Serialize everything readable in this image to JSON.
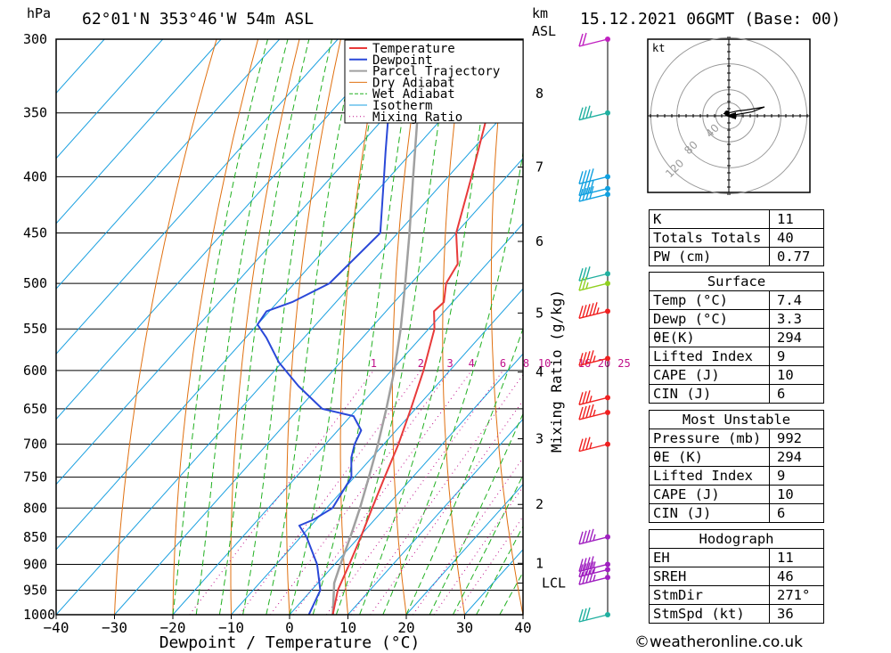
{
  "header": {
    "location": "62°01'N  353°46'W  54m  ASL",
    "datetime": "15.12.2021  06GMT  (Base: 00)",
    "hpa_label": "hPa",
    "km_label": "km",
    "asl_label": "ASL"
  },
  "chart_data": {
    "type": "skew-t",
    "xlabel": "Dewpoint / Temperature (°C)",
    "ylabel_right": "Mixing Ratio (g/kg)",
    "xlim": [
      -40,
      40
    ],
    "ylim_hpa": [
      1000,
      300
    ],
    "x_ticks": [
      -40,
      -30,
      -20,
      -10,
      0,
      10,
      20,
      30,
      40
    ],
    "p_ticks": [
      300,
      350,
      400,
      450,
      500,
      550,
      600,
      650,
      700,
      750,
      800,
      850,
      900,
      950,
      1000
    ],
    "km_ticks": [
      {
        "label": "1",
        "p": 898
      },
      {
        "label": "2",
        "p": 794
      },
      {
        "label": "3",
        "p": 692
      },
      {
        "label": "4",
        "p": 602
      },
      {
        "label": "5",
        "p": 532
      },
      {
        "label": "6",
        "p": 458
      },
      {
        "label": "7",
        "p": 392
      },
      {
        "label": "8",
        "p": 336
      }
    ],
    "lcl": {
      "label": "LCL",
      "p": 936
    },
    "mixing_ratio_labels": [
      "1",
      "2",
      "3",
      "4",
      "6",
      "8",
      "10",
      "16",
      "20",
      "25"
    ],
    "mixing_ratios": [
      1,
      2,
      3,
      4,
      6,
      8,
      10,
      16,
      20,
      25
    ],
    "legend": [
      {
        "name": "Temperature",
        "color": "#e83a3a"
      },
      {
        "name": "Dewpoint",
        "color": "#2a48d8"
      },
      {
        "name": "Parcel Trajectory",
        "color": "#a0a0a0"
      },
      {
        "name": "Dry Adiabat",
        "color": "#e07010"
      },
      {
        "name": "Wet Adiabat",
        "color": "#20b020"
      },
      {
        "name": "Isotherm",
        "color": "#1aa0e0"
      },
      {
        "name": "Mixing Ratio",
        "color": "#c0108a"
      }
    ],
    "temperature": [
      [
        1000,
        7.4
      ],
      [
        950,
        4.5
      ],
      [
        900,
        2.5
      ],
      [
        850,
        0.3
      ],
      [
        800,
        -2.2
      ],
      [
        750,
        -4.8
      ],
      [
        700,
        -7.5
      ],
      [
        650,
        -10.8
      ],
      [
        600,
        -14.5
      ],
      [
        550,
        -19.0
      ],
      [
        530,
        -21.8
      ],
      [
        520,
        -21.5
      ],
      [
        500,
        -24.0
      ],
      [
        480,
        -25.0
      ],
      [
        450,
        -30.0
      ],
      [
        400,
        -36.0
      ],
      [
        350,
        -43.0
      ],
      [
        320,
        -48.0
      ],
      [
        300,
        -50.0
      ]
    ],
    "dewpoint": [
      [
        1000,
        3.3
      ],
      [
        950,
        1.5
      ],
      [
        900,
        -3.0
      ],
      [
        850,
        -9.0
      ],
      [
        830,
        -12.0
      ],
      [
        820,
        -10.5
      ],
      [
        800,
        -9.0
      ],
      [
        750,
        -10.5
      ],
      [
        720,
        -13.5
      ],
      [
        700,
        -15.0
      ],
      [
        680,
        -16.0
      ],
      [
        660,
        -19.5
      ],
      [
        650,
        -26.0
      ],
      [
        620,
        -33.5
      ],
      [
        590,
        -40.5
      ],
      [
        560,
        -46.5
      ],
      [
        545,
        -50.0
      ],
      [
        530,
        -50.5
      ],
      [
        520,
        -47.5
      ],
      [
        500,
        -44.0
      ],
      [
        450,
        -43.0
      ],
      [
        400,
        -51.0
      ],
      [
        380,
        -54.5
      ],
      [
        350,
        -60.0
      ],
      [
        320,
        -64.0
      ],
      [
        300,
        -65.0
      ]
    ],
    "parcel": [
      [
        1000,
        7.4
      ],
      [
        936,
        2.8
      ],
      [
        900,
        1.0
      ],
      [
        850,
        -1.5
      ],
      [
        800,
        -4.3
      ],
      [
        750,
        -7.5
      ],
      [
        700,
        -11.0
      ],
      [
        650,
        -15.0
      ],
      [
        600,
        -19.5
      ],
      [
        550,
        -24.8
      ],
      [
        500,
        -31.0
      ],
      [
        450,
        -38.0
      ],
      [
        400,
        -46.0
      ],
      [
        350,
        -55.0
      ],
      [
        300,
        -65.0
      ]
    ],
    "wind_barbs": [
      {
        "p": 300,
        "dir": 250,
        "spd": 20,
        "color": "#c020c0"
      },
      {
        "p": 350,
        "dir": 250,
        "spd": 35,
        "color": "#20b0a0"
      },
      {
        "p": 400,
        "dir": 255,
        "spd": 40,
        "color": "#10a0e0"
      },
      {
        "p": 410,
        "dir": 255,
        "spd": 40,
        "color": "#10a0e0"
      },
      {
        "p": 415,
        "dir": 255,
        "spd": 40,
        "color": "#10a0e0"
      },
      {
        "p": 490,
        "dir": 260,
        "spd": 30,
        "color": "#20b0a0"
      },
      {
        "p": 500,
        "dir": 260,
        "spd": 25,
        "color": "#90d020"
      },
      {
        "p": 530,
        "dir": 265,
        "spd": 55,
        "color": "#f02020"
      },
      {
        "p": 585,
        "dir": 265,
        "spd": 45,
        "color": "#f02020"
      },
      {
        "p": 635,
        "dir": 268,
        "spd": 35,
        "color": "#f02020"
      },
      {
        "p": 655,
        "dir": 270,
        "spd": 45,
        "color": "#f02020"
      },
      {
        "p": 700,
        "dir": 270,
        "spd": 35,
        "color": "#f02020"
      },
      {
        "p": 850,
        "dir": 272,
        "spd": 45,
        "color": "#a020c0"
      },
      {
        "p": 900,
        "dir": 272,
        "spd": 45,
        "color": "#a020c0"
      },
      {
        "p": 910,
        "dir": 272,
        "spd": 45,
        "color": "#a020c0"
      },
      {
        "p": 925,
        "dir": 272,
        "spd": 45,
        "color": "#a020c0"
      },
      {
        "p": 1000,
        "dir": 270,
        "spd": 30,
        "color": "#20b0a0"
      }
    ],
    "hodograph": {
      "unit_label": "kt",
      "ring_labels": [
        "40",
        "80",
        "120"
      ],
      "points": [
        [
          -6,
          4
        ],
        [
          -4,
          6
        ],
        [
          0,
          6
        ],
        [
          10,
          10
        ],
        [
          20,
          12
        ],
        [
          40,
          18
        ],
        [
          26,
          8
        ],
        [
          0,
          0
        ]
      ]
    }
  },
  "indices": {
    "top": [
      {
        "k": "K",
        "v": "11"
      },
      {
        "k": "Totals Totals",
        "v": "40"
      },
      {
        "k": "PW (cm)",
        "v": "0.77"
      }
    ],
    "surface_title": "Surface",
    "surface": [
      {
        "k": "Temp (°C)",
        "v": "7.4"
      },
      {
        "k": "Dewp (°C)",
        "v": "3.3"
      },
      {
        "k": "θE(K)",
        "v": "294"
      },
      {
        "k": "Lifted Index",
        "v": "9"
      },
      {
        "k": "CAPE (J)",
        "v": "10"
      },
      {
        "k": "CIN (J)",
        "v": "6"
      }
    ],
    "mu_title": "Most Unstable",
    "mu": [
      {
        "k": "Pressure (mb)",
        "v": "992"
      },
      {
        "k": "θE (K)",
        "v": "294"
      },
      {
        "k": "Lifted Index",
        "v": "9"
      },
      {
        "k": "CAPE (J)",
        "v": "10"
      },
      {
        "k": "CIN (J)",
        "v": "6"
      }
    ],
    "hodo_title": "Hodograph",
    "hodo": [
      {
        "k": "EH",
        "v": "11"
      },
      {
        "k": "SREH",
        "v": "46"
      },
      {
        "k": "StmDir",
        "v": "271°"
      },
      {
        "k": "StmSpd (kt)",
        "v": "36"
      }
    ]
  },
  "copyright": "©weatheronline.co.uk"
}
